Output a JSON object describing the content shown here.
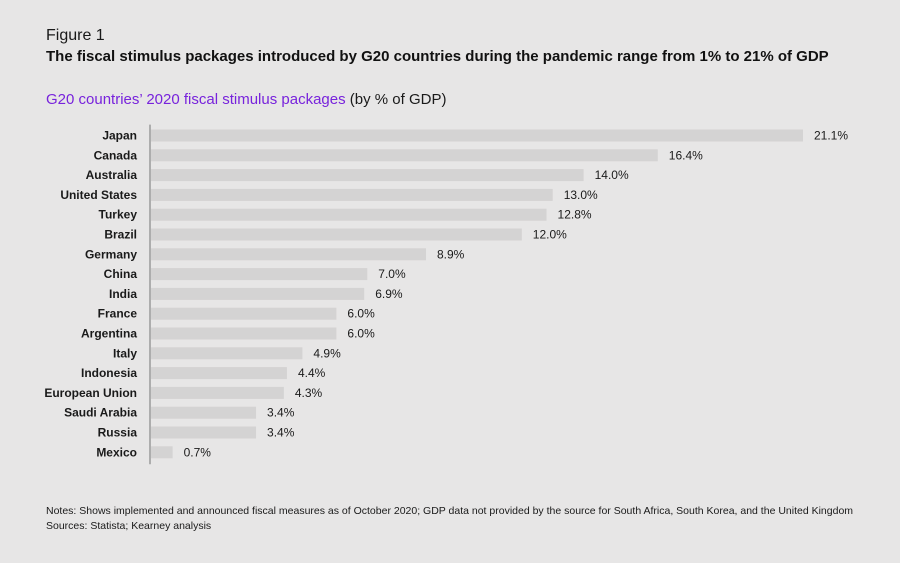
{
  "figure_label": "Figure 1",
  "headline": "The fiscal stimulus packages introduced by G20 countries during the pandemic range from 1% to 21% of GDP",
  "chart_title_main": "G20 countries’ 2020 fiscal stimulus packages",
  "chart_title_unit": " (by % of GDP)",
  "colors": {
    "accent": "#7823dc",
    "bar": "#d4d3d3",
    "axis": "#9a9a9a",
    "background": "#e7e6e6"
  },
  "chart_data": {
    "type": "bar",
    "orientation": "horizontal",
    "title": "G20 countries’ 2020 fiscal stimulus packages (by % of GDP)",
    "categories": [
      "Japan",
      "Canada",
      "Australia",
      "United States",
      "Turkey",
      "Brazil",
      "Germany",
      "China",
      "India",
      "France",
      "Argentina",
      "Italy",
      "Indonesia",
      "European Union",
      "Saudi Arabia",
      "Russia",
      "Mexico"
    ],
    "values": [
      21.1,
      16.4,
      14.0,
      13.0,
      12.8,
      12.0,
      8.9,
      7.0,
      6.9,
      6.0,
      6.0,
      4.9,
      4.4,
      4.3,
      3.4,
      3.4,
      0.7
    ],
    "labels": [
      "21.1%",
      "16.4%",
      "14.0%",
      "13.0%",
      "12.8%",
      "12.0%",
      "8.9%",
      "7.0%",
      "6.9%",
      "6.0%",
      "6.0%",
      "4.9%",
      "4.4%",
      "4.3%",
      "3.4%",
      "3.4%",
      "0.7%"
    ],
    "xlabel": "",
    "ylabel": "",
    "xlim": [
      0,
      21.1
    ]
  },
  "notes": "Notes: Shows implemented and announced fiscal measures as of October 2020; GDP data not provided by the source for South Africa, South Korea, and the United Kingdom",
  "sources": "Sources: Statista; Kearney analysis"
}
